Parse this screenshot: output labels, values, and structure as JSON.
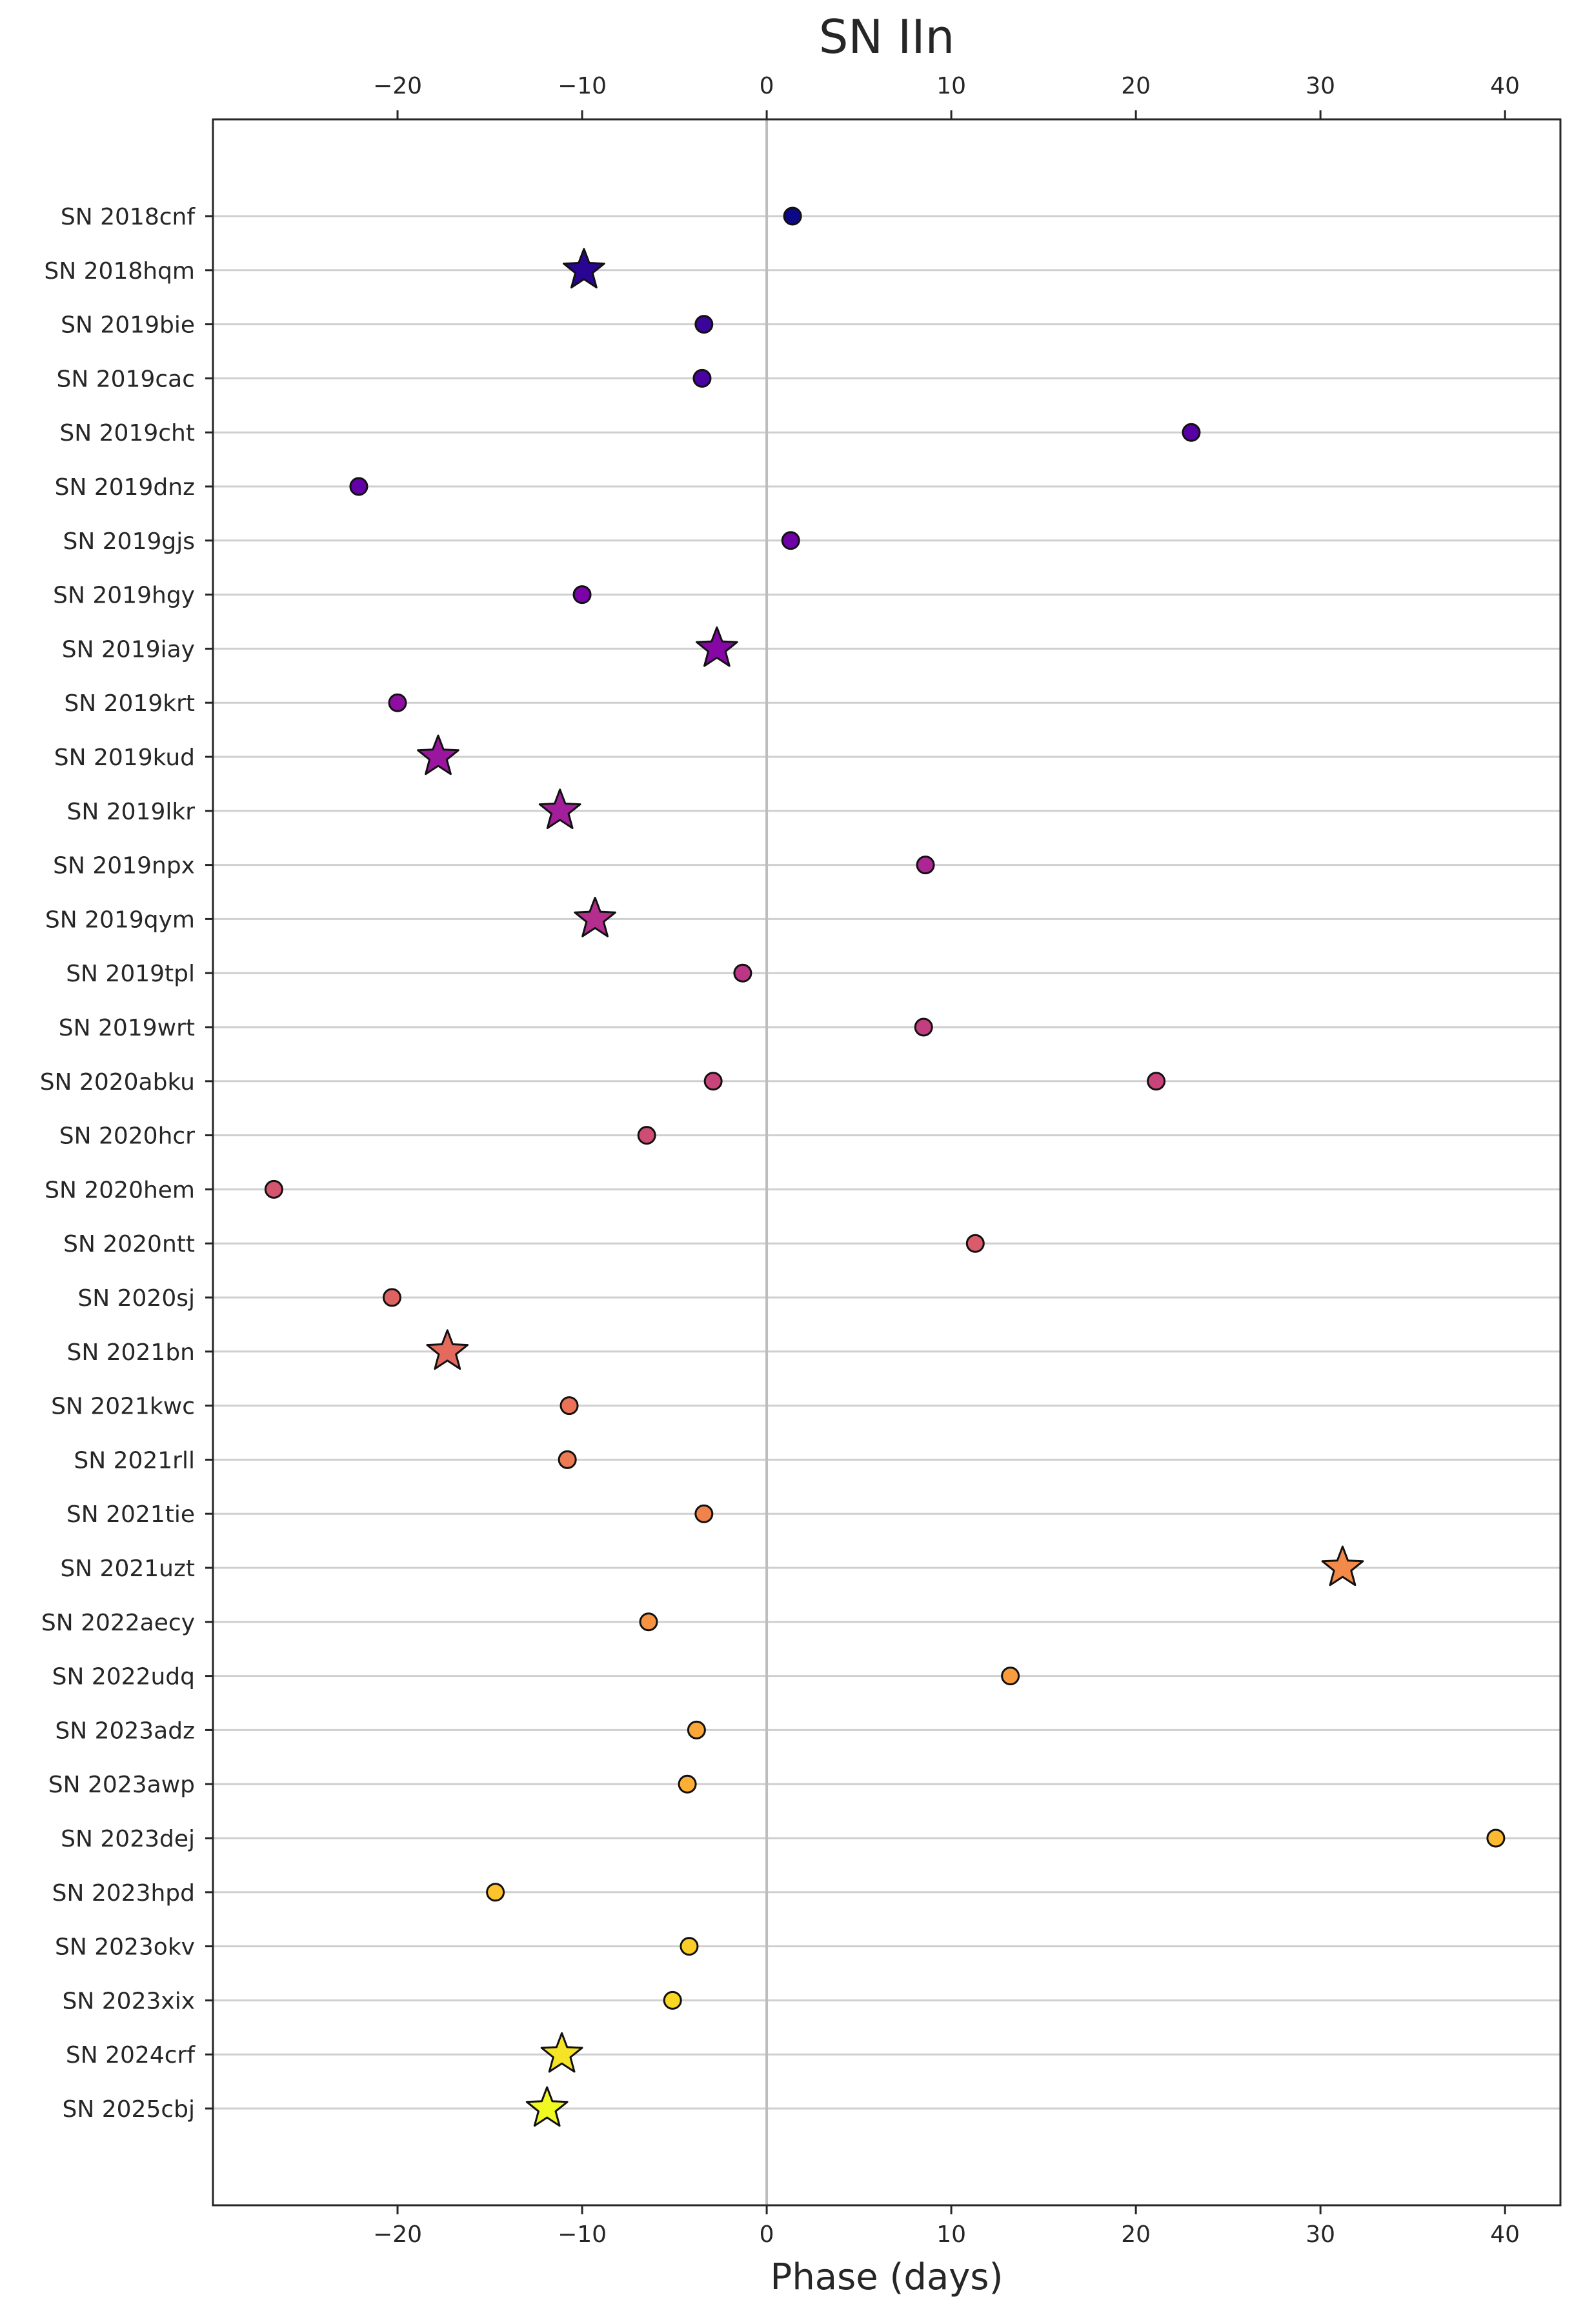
{
  "chart_data": {
    "type": "scatter",
    "title": "SN IIn",
    "xlabel": "Phase (days)",
    "ylabel": "",
    "xlim": [
      -30,
      43
    ],
    "xticks": [
      -20,
      -10,
      0,
      10,
      20,
      30,
      40
    ],
    "xtick_labels": [
      "−20",
      "−10",
      "0",
      "10",
      "20",
      "30",
      "40"
    ],
    "grid": "horizontal",
    "reference_line_x": 0,
    "colormap": "plasma",
    "categories": [
      "SN 2018cnf",
      "SN 2018hqm",
      "SN 2019bie",
      "SN 2019cac",
      "SN 2019cht",
      "SN 2019dnz",
      "SN 2019gjs",
      "SN 2019hgy",
      "SN 2019iay",
      "SN 2019krt",
      "SN 2019kud",
      "SN 2019lkr",
      "SN 2019npx",
      "SN 2019qym",
      "SN 2019tpl",
      "SN 2019wrt",
      "SN 2020abku",
      "SN 2020hcr",
      "SN 2020hem",
      "SN 2020ntt",
      "SN 2020sj",
      "SN 2021bn",
      "SN 2021kwc",
      "SN 2021rll",
      "SN 2021tie",
      "SN 2021uzt",
      "SN 2022aecy",
      "SN 2022udq",
      "SN 2023adz",
      "SN 2023awp",
      "SN 2023dej",
      "SN 2023hpd",
      "SN 2023okv",
      "SN 2023xix",
      "SN 2024crf",
      "SN 2025cbj"
    ],
    "points": [
      {
        "sn": "SN 2018cnf",
        "x": 1.4,
        "marker": "circle",
        "color": "#0d0887"
      },
      {
        "sn": "SN 2018hqm",
        "x": -9.9,
        "marker": "star",
        "color": "#2a0593"
      },
      {
        "sn": "SN 2019bie",
        "x": -3.4,
        "marker": "circle",
        "color": "#3b049a"
      },
      {
        "sn": "SN 2019cac",
        "x": -3.5,
        "marker": "circle",
        "color": "#4903a0"
      },
      {
        "sn": "SN 2019cht",
        "x": 23.0,
        "marker": "circle",
        "color": "#5701a4"
      },
      {
        "sn": "SN 2019dnz",
        "x": -22.1,
        "marker": "circle",
        "color": "#6300a7"
      },
      {
        "sn": "SN 2019gjs",
        "x": 1.3,
        "marker": "circle",
        "color": "#6f00a8"
      },
      {
        "sn": "SN 2019hgy",
        "x": -10.0,
        "marker": "circle",
        "color": "#7b02a8"
      },
      {
        "sn": "SN 2019iay",
        "x": -2.7,
        "marker": "star",
        "color": "#8606a6"
      },
      {
        "sn": "SN 2019krt",
        "x": -20.0,
        "marker": "circle",
        "color": "#900da4"
      },
      {
        "sn": "SN 2019kud",
        "x": -17.8,
        "marker": "star",
        "color": "#9a169f"
      },
      {
        "sn": "SN 2019lkr",
        "x": -11.2,
        "marker": "star",
        "color": "#a31e9a"
      },
      {
        "sn": "SN 2019npx",
        "x": 8.6,
        "marker": "circle",
        "color": "#ac2694"
      },
      {
        "sn": "SN 2019qym",
        "x": -9.3,
        "marker": "star",
        "color": "#b42e8d"
      },
      {
        "sn": "SN 2019tpl",
        "x": -1.3,
        "marker": "circle",
        "color": "#bc3587"
      },
      {
        "sn": "SN 2019wrt",
        "x": 8.5,
        "marker": "circle",
        "color": "#c33d80"
      },
      {
        "sn": "SN 2020abku",
        "x": -2.9,
        "marker": "circle",
        "color": "#c9447a"
      },
      {
        "sn": "SN 2020abku",
        "x": 21.1,
        "marker": "circle",
        "color": "#c9447a"
      },
      {
        "sn": "SN 2020hcr",
        "x": -6.5,
        "marker": "circle",
        "color": "#cf4c74"
      },
      {
        "sn": "SN 2020hem",
        "x": -26.7,
        "marker": "circle",
        "color": "#d5546e"
      },
      {
        "sn": "SN 2020ntt",
        "x": 11.3,
        "marker": "circle",
        "color": "#da5b69"
      },
      {
        "sn": "SN 2020sj",
        "x": -20.3,
        "marker": "circle",
        "color": "#df6263"
      },
      {
        "sn": "SN 2021bn",
        "x": -17.3,
        "marker": "star",
        "color": "#e46a5d"
      },
      {
        "sn": "SN 2021kwc",
        "x": -10.7,
        "marker": "circle",
        "color": "#e97257"
      },
      {
        "sn": "SN 2021rll",
        "x": -10.8,
        "marker": "circle",
        "color": "#ec7a52"
      },
      {
        "sn": "SN 2021tie",
        "x": -3.4,
        "marker": "circle",
        "color": "#f0824c"
      },
      {
        "sn": "SN 2021uzt",
        "x": 31.2,
        "marker": "star",
        "color": "#f38a47"
      },
      {
        "sn": "SN 2022aecy",
        "x": -6.4,
        "marker": "circle",
        "color": "#f69342"
      },
      {
        "sn": "SN 2022udq",
        "x": 13.2,
        "marker": "circle",
        "color": "#f89c3d"
      },
      {
        "sn": "SN 2023adz",
        "x": -3.8,
        "marker": "circle",
        "color": "#faa638"
      },
      {
        "sn": "SN 2023awp",
        "x": -4.3,
        "marker": "circle",
        "color": "#fcaf34"
      },
      {
        "sn": "SN 2023dej",
        "x": 39.5,
        "marker": "circle",
        "color": "#fdb930"
      },
      {
        "sn": "SN 2023hpd",
        "x": -14.7,
        "marker": "circle",
        "color": "#fdc32d"
      },
      {
        "sn": "SN 2023okv",
        "x": -4.2,
        "marker": "circle",
        "color": "#fccd26"
      },
      {
        "sn": "SN 2023xix",
        "x": -5.1,
        "marker": "circle",
        "color": "#f9d825"
      },
      {
        "sn": "SN 2024crf",
        "x": -11.1,
        "marker": "star",
        "color": "#f5e325"
      },
      {
        "sn": "SN 2025cbj",
        "x": -11.9,
        "marker": "star",
        "color": "#f0f921"
      }
    ]
  }
}
